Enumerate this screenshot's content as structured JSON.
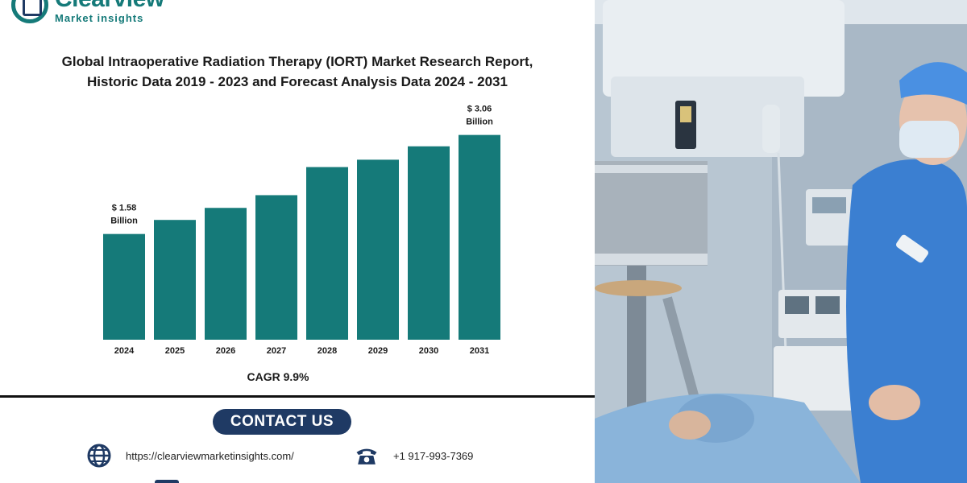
{
  "brand": {
    "name": "Clearview",
    "tagline": "Market insights",
    "primary_color": "#157a79",
    "secondary_color": "#1f3a64"
  },
  "title_line1": "Global Intraoperative Radiation Therapy (IORT) Market Research Report,",
  "title_line2": "Historic Data 2019 - 2023 and Forecast Analysis Data 2024 - 2031",
  "chart_data": {
    "type": "bar",
    "categories": [
      "2024",
      "2025",
      "2026",
      "2027",
      "2028",
      "2029",
      "2030",
      "2031"
    ],
    "values": [
      1.58,
      1.79,
      1.97,
      2.16,
      2.58,
      2.69,
      2.89,
      3.06
    ],
    "bar_color": "#157a79",
    "data_labels": [
      {
        "category": "2024",
        "line1": "$ 1.58",
        "line2": "Billion"
      },
      {
        "category": "2031",
        "line1": "$ 3.06",
        "line2": "Billion"
      }
    ],
    "ylim": [
      0,
      3.2
    ],
    "grid": false,
    "legend": "none",
    "xlabel": "",
    "ylabel": ""
  },
  "cagr_text": "CAGR 9.9%",
  "contact": {
    "heading": "CONTACT US",
    "website": "https://clearviewmarketinsights.com/",
    "phone": "+1 917-993-7369",
    "website_icon": "globe-icon",
    "phone_icon": "telephone-icon"
  },
  "photo": {
    "subject": "operating room scene with surgical equipment and a nurse in blue scrubs"
  }
}
